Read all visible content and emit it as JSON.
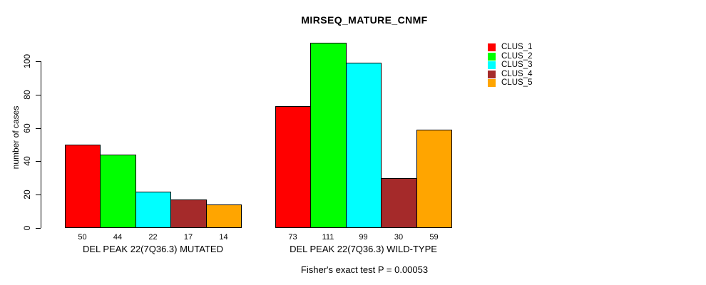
{
  "chart_data": {
    "type": "bar",
    "title": "MIRSEQ_MATURE_CNMF",
    "ylabel": "number of cases",
    "subtitle": "Fisher's exact test P = 0.00053",
    "yticks": [
      0,
      20,
      40,
      60,
      80,
      100
    ],
    "ylim": [
      0,
      115
    ],
    "grid": false,
    "legend_position": "top-right",
    "categories": [
      "DEL PEAK 22(7Q36.3) MUTATED",
      "DEL PEAK 22(7Q36.3) WILD-TYPE"
    ],
    "series": [
      {
        "name": "CLUS_1",
        "color": "#FF0000",
        "values": [
          50,
          73
        ]
      },
      {
        "name": "CLUS_2",
        "color": "#00FF00",
        "values": [
          44,
          111
        ]
      },
      {
        "name": "CLUS_3",
        "color": "#00FFFF",
        "values": [
          22,
          99
        ]
      },
      {
        "name": "CLUS_4",
        "color": "#A52A2A",
        "values": [
          17,
          30
        ]
      },
      {
        "name": "CLUS_5",
        "color": "#FFA500",
        "values": [
          14,
          59
        ]
      }
    ]
  }
}
